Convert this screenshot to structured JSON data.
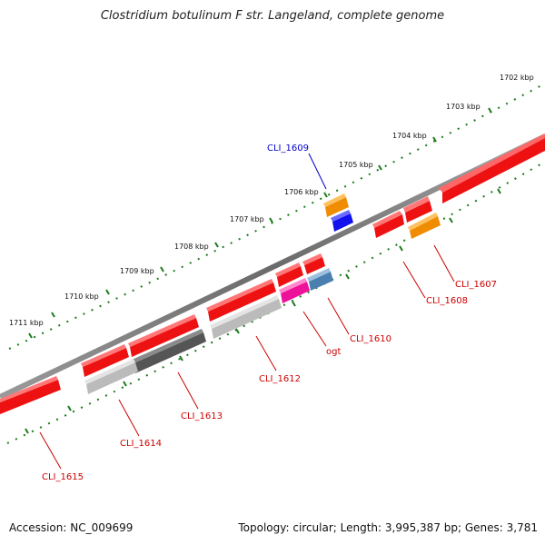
{
  "title": "Clostridium botulinum F str. Langeland, complete genome",
  "footer": {
    "accession": "Accession: NC_009699",
    "summary": "Topology: circular; Length: 3,995,387 bp; Genes: 3,781"
  },
  "scale_ticks": [
    "1702 kbp",
    "1703 kbp",
    "1704 kbp",
    "1705 kbp",
    "1706 kbp",
    "1707 kbp",
    "1708 kbp",
    "1709 kbp",
    "1710 kbp",
    "1711 kbp"
  ],
  "gene_labels": [
    {
      "text": "CLI_1609",
      "color": "#0000cc"
    },
    {
      "text": "CLI_1607",
      "color": "#cc0000"
    },
    {
      "text": "CLI_1608",
      "color": "#cc0000"
    },
    {
      "text": "CLI_1610",
      "color": "#cc0000"
    },
    {
      "text": "ogt",
      "color": "#cc0000"
    },
    {
      "text": "CLI_1612",
      "color": "#cc0000"
    },
    {
      "text": "CLI_1613",
      "color": "#cc0000"
    },
    {
      "text": "CLI_1614",
      "color": "#cc0000"
    },
    {
      "text": "CLI_1615",
      "color": "#cc0000"
    }
  ],
  "colors": {
    "backbone": "#7a7a7a",
    "tick": "#1a7a1a",
    "cds": "#ee1111",
    "trna_orange": "#f08c00",
    "blue": "#1111ee",
    "magenta": "#ee1199",
    "steelblue": "#4a7fb0",
    "darkgray": "#555555",
    "lightgray": "#bbbbbb"
  }
}
